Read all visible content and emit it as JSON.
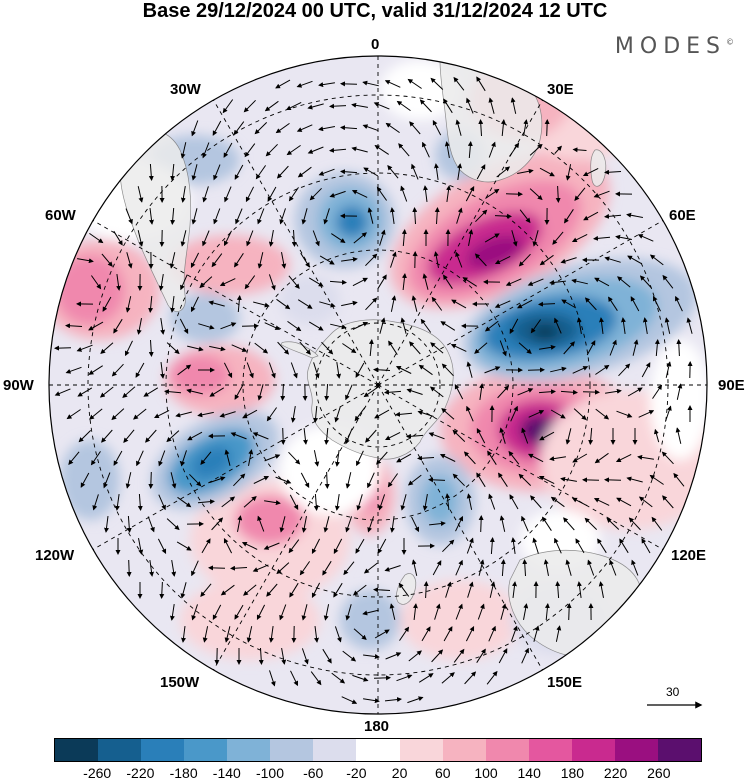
{
  "title": "Base 29/12/2024 00 UTC, valid 31/12/2024 12 UTC",
  "brand": {
    "text": "MODES",
    "mark": "©"
  },
  "longitude_labels": [
    "0",
    "30E",
    "60E",
    "90E",
    "120E",
    "150E",
    "180",
    "150W",
    "120W",
    "90W",
    "60W",
    "30W"
  ],
  "reference_vector": {
    "label": "30"
  },
  "colorbar": {
    "colors": [
      "#0b3a58",
      "#155f8f",
      "#2a7fb9",
      "#4a98c9",
      "#7fb2d7",
      "#b4c6e0",
      "#dcdded",
      "#ffffff",
      "#f9d6da",
      "#f6b3c0",
      "#f088ad",
      "#e4579f",
      "#c92a8f",
      "#9a0f80",
      "#5b0f6e"
    ],
    "ticks": [
      "-260",
      "-220",
      "-180",
      "-140",
      "-100",
      "-60",
      "-20",
      "20",
      "60",
      "100",
      "140",
      "180",
      "220",
      "260"
    ]
  }
}
